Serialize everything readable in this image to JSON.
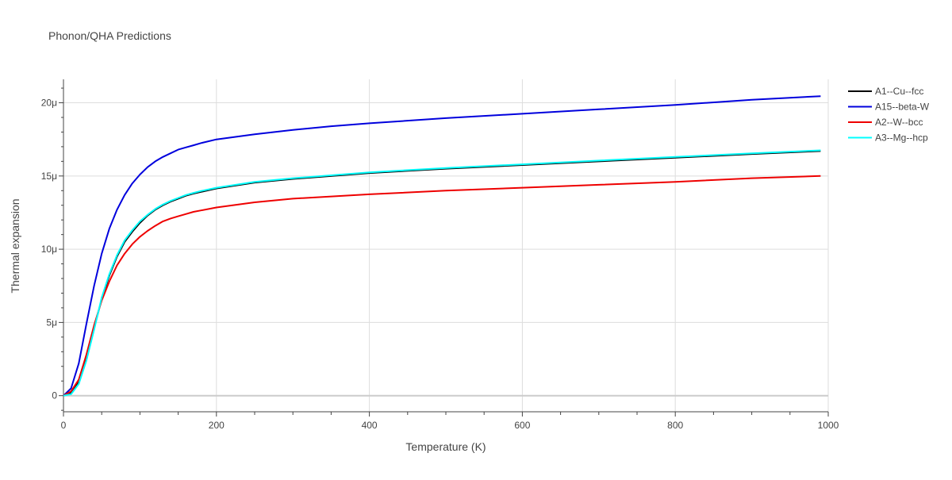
{
  "chart_data": {
    "type": "line",
    "title": "Phonon/QHA Predictions",
    "xlabel": "Temperature (K)",
    "ylabel": "Thermal expansion",
    "xlim": [
      0,
      1000
    ],
    "ylim": [
      -1.1,
      21.6
    ],
    "x_ticks": [
      0,
      200,
      400,
      600,
      800,
      1000
    ],
    "x_tick_labels": [
      "0",
      "200",
      "400",
      "600",
      "800",
      "1000"
    ],
    "y_ticks": [
      0,
      5,
      10,
      15,
      20
    ],
    "y_tick_labels": [
      "0",
      "5μ",
      "10μ",
      "15μ",
      "20μ"
    ],
    "y_unit": "1e-6",
    "grid": true,
    "legend_position": "top-right",
    "series": [
      {
        "name": "A1--Cu--fcc",
        "color": "#000000",
        "x": [
          0,
          10,
          20,
          30,
          40,
          50,
          60,
          70,
          80,
          90,
          100,
          110,
          120,
          130,
          140,
          150,
          160,
          170,
          180,
          200,
          250,
          300,
          400,
          500,
          600,
          700,
          800,
          900,
          990
        ],
        "y": [
          0,
          0.2,
          0.9,
          2.5,
          4.6,
          6.6,
          8.2,
          9.5,
          10.5,
          11.2,
          11.8,
          12.3,
          12.7,
          13.0,
          13.25,
          13.45,
          13.65,
          13.8,
          13.92,
          14.15,
          14.55,
          14.8,
          15.2,
          15.5,
          15.75,
          16.0,
          16.25,
          16.5,
          16.7
        ]
      },
      {
        "name": "A15--beta-W",
        "color": "#0000dd",
        "x": [
          0,
          10,
          20,
          30,
          40,
          50,
          60,
          70,
          80,
          90,
          100,
          110,
          120,
          130,
          140,
          150,
          160,
          170,
          180,
          200,
          250,
          300,
          350,
          400,
          500,
          600,
          700,
          800,
          900,
          990
        ],
        "y": [
          0,
          0.5,
          2.2,
          4.9,
          7.5,
          9.7,
          11.4,
          12.7,
          13.7,
          14.5,
          15.1,
          15.6,
          16.0,
          16.3,
          16.55,
          16.8,
          16.95,
          17.1,
          17.25,
          17.5,
          17.85,
          18.15,
          18.4,
          18.6,
          18.95,
          19.25,
          19.55,
          19.85,
          20.2,
          20.45
        ]
      },
      {
        "name": "A2--W--bcc",
        "color": "#ee0000",
        "x": [
          0,
          10,
          20,
          30,
          40,
          50,
          60,
          70,
          80,
          90,
          100,
          110,
          120,
          130,
          140,
          150,
          160,
          170,
          180,
          200,
          250,
          300,
          400,
          500,
          600,
          700,
          800,
          900,
          990
        ],
        "y": [
          0,
          0.3,
          1.1,
          2.8,
          4.8,
          6.5,
          7.8,
          8.9,
          9.7,
          10.35,
          10.85,
          11.25,
          11.6,
          11.9,
          12.1,
          12.25,
          12.4,
          12.55,
          12.65,
          12.85,
          13.2,
          13.45,
          13.75,
          14.0,
          14.2,
          14.4,
          14.6,
          14.85,
          15.0
        ]
      },
      {
        "name": "A3--Mg--hcp",
        "color": "#00ffff",
        "x": [
          0,
          10,
          20,
          30,
          40,
          50,
          60,
          70,
          80,
          90,
          100,
          110,
          120,
          130,
          140,
          150,
          160,
          170,
          180,
          200,
          250,
          300,
          400,
          500,
          600,
          700,
          800,
          900,
          990
        ],
        "y": [
          0,
          0.1,
          0.8,
          2.4,
          4.5,
          6.7,
          8.3,
          9.6,
          10.6,
          11.3,
          11.9,
          12.35,
          12.75,
          13.05,
          13.3,
          13.5,
          13.7,
          13.85,
          13.98,
          14.2,
          14.6,
          14.85,
          15.25,
          15.55,
          15.8,
          16.05,
          16.3,
          16.55,
          16.75
        ]
      }
    ]
  }
}
